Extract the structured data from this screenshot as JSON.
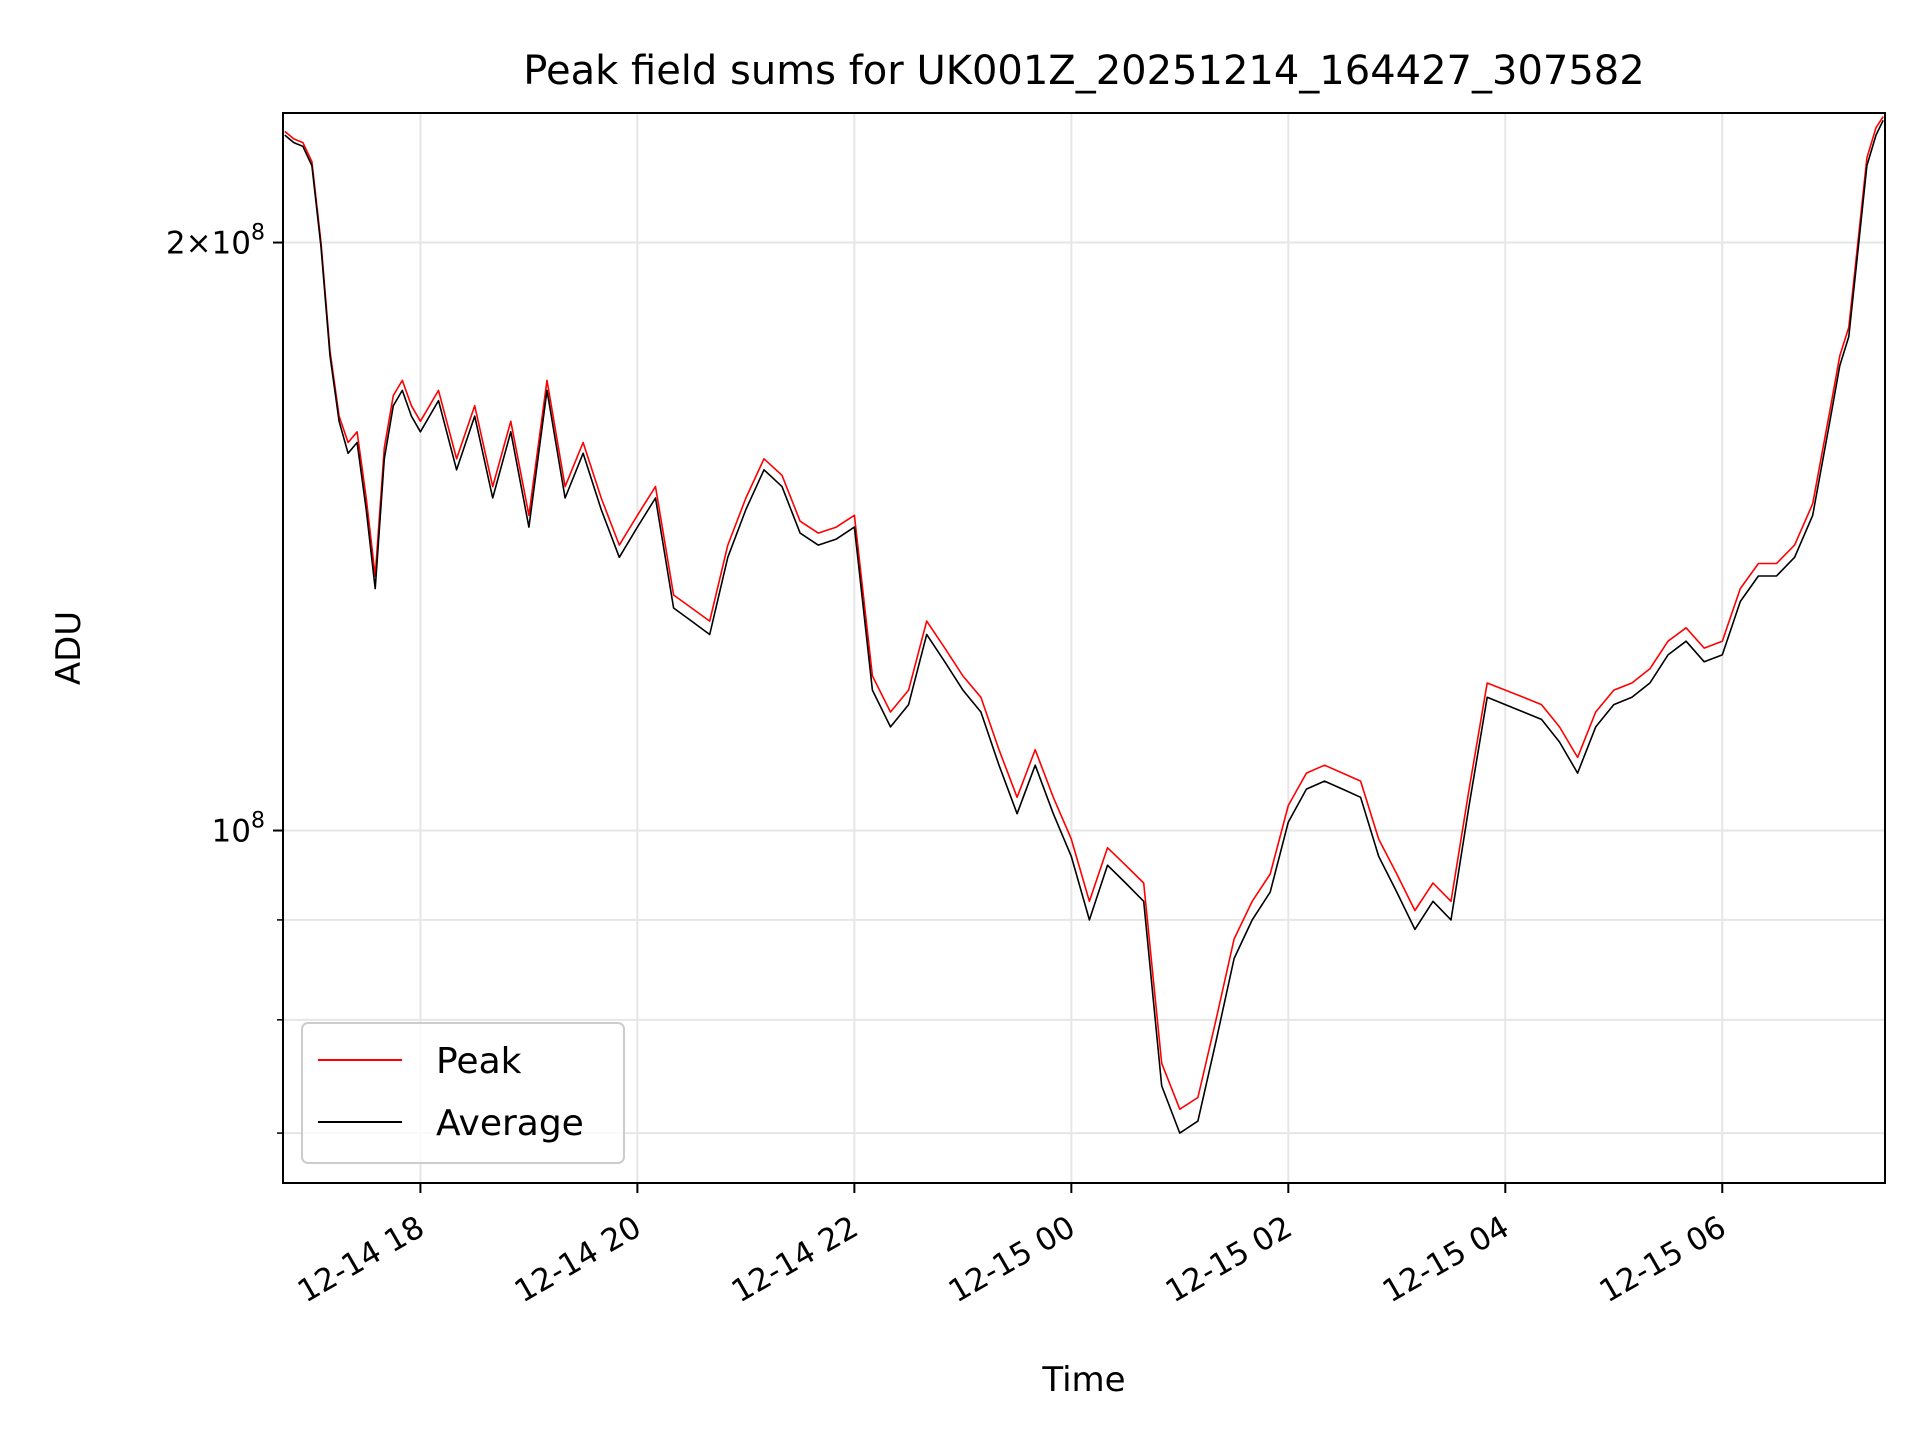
{
  "chart_data": {
    "type": "line",
    "title": "Peak field sums for UK001Z_20251214_164427_307582",
    "xlabel": "Time",
    "ylabel": "ADU",
    "y_scale": "log",
    "grid": true,
    "legend_placement": "lower-left",
    "x_ticks": [
      "12-14 18",
      "12-14 20",
      "12-14 22",
      "12-15 00",
      "12-15 02",
      "12-15 04",
      "12-15 06"
    ],
    "y_ticks": [
      {
        "value": 100000000,
        "mantissa": "",
        "base": "10",
        "exp": "8"
      },
      {
        "value": 200000000,
        "mantissa": "2",
        "base": "10",
        "exp": "8"
      }
    ],
    "y_minor_ticks": [
      70000000,
      80000000,
      90000000
    ],
    "xlim": [
      "2025-12-14 16:44",
      "2025-12-15 07:30"
    ],
    "ylim": [
      66000000,
      233000000
    ],
    "series": [
      {
        "name": "Peak",
        "color": "#ff0000",
        "x": [
          "2025-12-14 16:45",
          "2025-12-14 16:50",
          "2025-12-14 16:55",
          "2025-12-14 17:00",
          "2025-12-14 17:05",
          "2025-12-14 17:10",
          "2025-12-14 17:15",
          "2025-12-14 17:20",
          "2025-12-14 17:25",
          "2025-12-14 17:30",
          "2025-12-14 17:35",
          "2025-12-14 17:40",
          "2025-12-14 17:45",
          "2025-12-14 17:50",
          "2025-12-14 17:55",
          "2025-12-14 18:00",
          "2025-12-14 18:10",
          "2025-12-14 18:20",
          "2025-12-14 18:30",
          "2025-12-14 18:40",
          "2025-12-14 18:50",
          "2025-12-14 19:00",
          "2025-12-14 19:10",
          "2025-12-14 19:20",
          "2025-12-14 19:30",
          "2025-12-14 19:40",
          "2025-12-14 19:50",
          "2025-12-14 20:00",
          "2025-12-14 20:10",
          "2025-12-14 20:20",
          "2025-12-14 20:30",
          "2025-12-14 20:40",
          "2025-12-14 20:50",
          "2025-12-14 21:00",
          "2025-12-14 21:10",
          "2025-12-14 21:20",
          "2025-12-14 21:30",
          "2025-12-14 21:40",
          "2025-12-14 21:50",
          "2025-12-14 22:00",
          "2025-12-14 22:10",
          "2025-12-14 22:20",
          "2025-12-14 22:30",
          "2025-12-14 22:40",
          "2025-12-14 22:50",
          "2025-12-14 23:00",
          "2025-12-14 23:10",
          "2025-12-14 23:20",
          "2025-12-14 23:30",
          "2025-12-14 23:40",
          "2025-12-14 23:50",
          "2025-12-15 00:00",
          "2025-12-15 00:10",
          "2025-12-15 00:20",
          "2025-12-15 00:30",
          "2025-12-15 00:40",
          "2025-12-15 00:50",
          "2025-12-15 01:00",
          "2025-12-15 01:10",
          "2025-12-15 01:20",
          "2025-12-15 01:30",
          "2025-12-15 01:40",
          "2025-12-15 01:50",
          "2025-12-15 02:00",
          "2025-12-15 02:10",
          "2025-12-15 02:20",
          "2025-12-15 02:30",
          "2025-12-15 02:40",
          "2025-12-15 02:50",
          "2025-12-15 03:00",
          "2025-12-15 03:10",
          "2025-12-15 03:20",
          "2025-12-15 03:30",
          "2025-12-15 03:40",
          "2025-12-15 03:50",
          "2025-12-15 04:00",
          "2025-12-15 04:10",
          "2025-12-15 04:20",
          "2025-12-15 04:30",
          "2025-12-15 04:40",
          "2025-12-15 04:50",
          "2025-12-15 05:00",
          "2025-12-15 05:10",
          "2025-12-15 05:20",
          "2025-12-15 05:30",
          "2025-12-15 05:40",
          "2025-12-15 05:50",
          "2025-12-15 06:00",
          "2025-12-15 06:10",
          "2025-12-15 06:20",
          "2025-12-15 06:30",
          "2025-12-15 06:40",
          "2025-12-15 06:50",
          "2025-12-15 07:00",
          "2025-12-15 07:05",
          "2025-12-15 07:10",
          "2025-12-15 07:15",
          "2025-12-15 07:20",
          "2025-12-15 07:25",
          "2025-12-15 07:29"
        ],
        "values": [
          228000000,
          226000000,
          225000000,
          220000000,
          200000000,
          176000000,
          163000000,
          158000000,
          160000000,
          148000000,
          135000000,
          157000000,
          167000000,
          170000000,
          165000000,
          162000000,
          168000000,
          155000000,
          165000000,
          150000000,
          162000000,
          145000000,
          170000000,
          150000000,
          158000000,
          148000000,
          140000000,
          145000000,
          150000000,
          132000000,
          130000000,
          128000000,
          140000000,
          148000000,
          155000000,
          152000000,
          144000000,
          142000000,
          143000000,
          145000000,
          120000000,
          115000000,
          118000000,
          128000000,
          124000000,
          120000000,
          117000000,
          110000000,
          104000000,
          110000000,
          104000000,
          99000000,
          92000000,
          98000000,
          96000000,
          94000000,
          76000000,
          72000000,
          73000000,
          80000000,
          88000000,
          92000000,
          95000000,
          103000000,
          107000000,
          108000000,
          107000000,
          106000000,
          99000000,
          95000000,
          91000000,
          94000000,
          92000000,
          105000000,
          119000000,
          118000000,
          117000000,
          116000000,
          113000000,
          109000000,
          115000000,
          118000000,
          119000000,
          121000000,
          125000000,
          127000000,
          124000000,
          125000000,
          133000000,
          137000000,
          137000000,
          140000000,
          147000000,
          165000000,
          175000000,
          181000000,
          200000000,
          221000000,
          229000000,
          232000000
        ]
      },
      {
        "name": "Average",
        "color": "#000000",
        "x": [
          "2025-12-14 16:45",
          "2025-12-14 16:50",
          "2025-12-14 16:55",
          "2025-12-14 17:00",
          "2025-12-14 17:05",
          "2025-12-14 17:10",
          "2025-12-14 17:15",
          "2025-12-14 17:20",
          "2025-12-14 17:25",
          "2025-12-14 17:30",
          "2025-12-14 17:35",
          "2025-12-14 17:40",
          "2025-12-14 17:45",
          "2025-12-14 17:50",
          "2025-12-14 17:55",
          "2025-12-14 18:00",
          "2025-12-14 18:10",
          "2025-12-14 18:20",
          "2025-12-14 18:30",
          "2025-12-14 18:40",
          "2025-12-14 18:50",
          "2025-12-14 19:00",
          "2025-12-14 19:10",
          "2025-12-14 19:20",
          "2025-12-14 19:30",
          "2025-12-14 19:40",
          "2025-12-14 19:50",
          "2025-12-14 20:00",
          "2025-12-14 20:10",
          "2025-12-14 20:20",
          "2025-12-14 20:30",
          "2025-12-14 20:40",
          "2025-12-14 20:50",
          "2025-12-14 21:00",
          "2025-12-14 21:10",
          "2025-12-14 21:20",
          "2025-12-14 21:30",
          "2025-12-14 21:40",
          "2025-12-14 21:50",
          "2025-12-14 22:00",
          "2025-12-14 22:10",
          "2025-12-14 22:20",
          "2025-12-14 22:30",
          "2025-12-14 22:40",
          "2025-12-14 22:50",
          "2025-12-14 23:00",
          "2025-12-14 23:10",
          "2025-12-14 23:20",
          "2025-12-14 23:30",
          "2025-12-14 23:40",
          "2025-12-14 23:50",
          "2025-12-15 00:00",
          "2025-12-15 00:10",
          "2025-12-15 00:20",
          "2025-12-15 00:30",
          "2025-12-15 00:40",
          "2025-12-15 00:50",
          "2025-12-15 01:00",
          "2025-12-15 01:10",
          "2025-12-15 01:20",
          "2025-12-15 01:30",
          "2025-12-15 01:40",
          "2025-12-15 01:50",
          "2025-12-15 02:00",
          "2025-12-15 02:10",
          "2025-12-15 02:20",
          "2025-12-15 02:30",
          "2025-12-15 02:40",
          "2025-12-15 02:50",
          "2025-12-15 03:00",
          "2025-12-15 03:10",
          "2025-12-15 03:20",
          "2025-12-15 03:30",
          "2025-12-15 03:40",
          "2025-12-15 03:50",
          "2025-12-15 04:00",
          "2025-12-15 04:10",
          "2025-12-15 04:20",
          "2025-12-15 04:30",
          "2025-12-15 04:40",
          "2025-12-15 04:50",
          "2025-12-15 05:00",
          "2025-12-15 05:10",
          "2025-12-15 05:20",
          "2025-12-15 05:30",
          "2025-12-15 05:40",
          "2025-12-15 05:50",
          "2025-12-15 06:00",
          "2025-12-15 06:10",
          "2025-12-15 06:20",
          "2025-12-15 06:30",
          "2025-12-15 06:40",
          "2025-12-15 06:50",
          "2025-12-15 07:00",
          "2025-12-15 07:05",
          "2025-12-15 07:10",
          "2025-12-15 07:15",
          "2025-12-15 07:20",
          "2025-12-15 07:25",
          "2025-12-15 07:29"
        ],
        "values": [
          227000000,
          225000000,
          224000000,
          219000000,
          199000000,
          175000000,
          162000000,
          156000000,
          158000000,
          146000000,
          133000000,
          155000000,
          165000000,
          168000000,
          163000000,
          160000000,
          166000000,
          153000000,
          163000000,
          148000000,
          160000000,
          143000000,
          168000000,
          148000000,
          156000000,
          146000000,
          138000000,
          143000000,
          148000000,
          130000000,
          128000000,
          126000000,
          138000000,
          146000000,
          153000000,
          150000000,
          142000000,
          140000000,
          141000000,
          143000000,
          118000000,
          113000000,
          116000000,
          126000000,
          122000000,
          118000000,
          115000000,
          108000000,
          102000000,
          108000000,
          102000000,
          97000000,
          90000000,
          96000000,
          94000000,
          92000000,
          74000000,
          70000000,
          71000000,
          78000000,
          86000000,
          90000000,
          93000000,
          101000000,
          105000000,
          106000000,
          105000000,
          104000000,
          97000000,
          93000000,
          89000000,
          92000000,
          90000000,
          103000000,
          117000000,
          116000000,
          115000000,
          114000000,
          111000000,
          107000000,
          113000000,
          116000000,
          117000000,
          119000000,
          123000000,
          125000000,
          122000000,
          123000000,
          131000000,
          135000000,
          135000000,
          138000000,
          145000000,
          163000000,
          173000000,
          179000000,
          198000000,
          219000000,
          227000000,
          231000000
        ]
      }
    ]
  }
}
